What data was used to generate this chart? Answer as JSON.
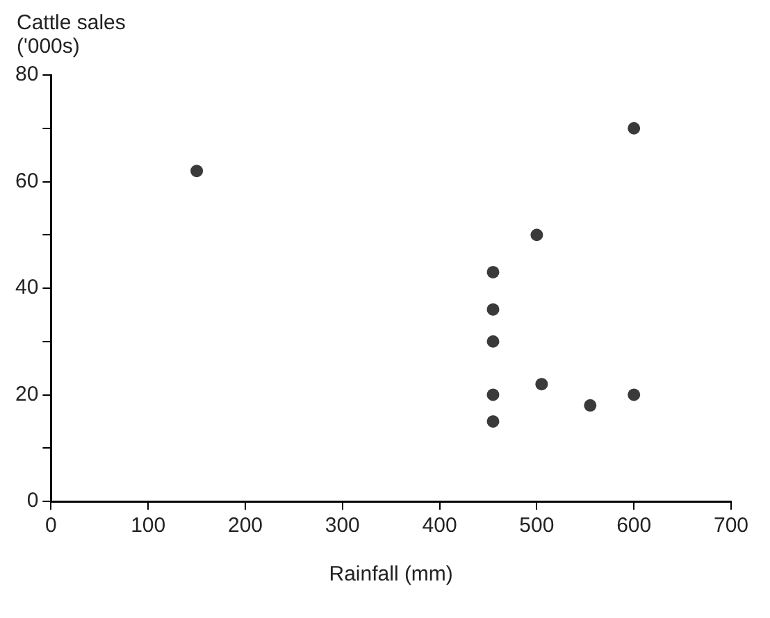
{
  "chart_data": {
    "type": "scatter",
    "xlabel": "Rainfall (mm)",
    "ylabel": "Cattle sales ('000s)",
    "x": [
      150,
      455,
      455,
      455,
      455,
      455,
      500,
      505,
      555,
      600,
      600
    ],
    "values": [
      62,
      43,
      36,
      30,
      20,
      15,
      50,
      22,
      18,
      70,
      20
    ],
    "color": "#3a3a3a",
    "marker": "circle",
    "grid": false,
    "xlim": [
      0,
      700
    ],
    "xticks": [
      0,
      100,
      200,
      300,
      400,
      500,
      600,
      700
    ],
    "ylim": [
      0,
      80
    ],
    "yticks": [
      0,
      {
        "value": 10,
        "label": null
      },
      20,
      {
        "value": 30,
        "label": null
      },
      40,
      {
        "value": 50,
        "label": null
      },
      60,
      {
        "value": 70,
        "label": null
      },
      80
    ]
  }
}
